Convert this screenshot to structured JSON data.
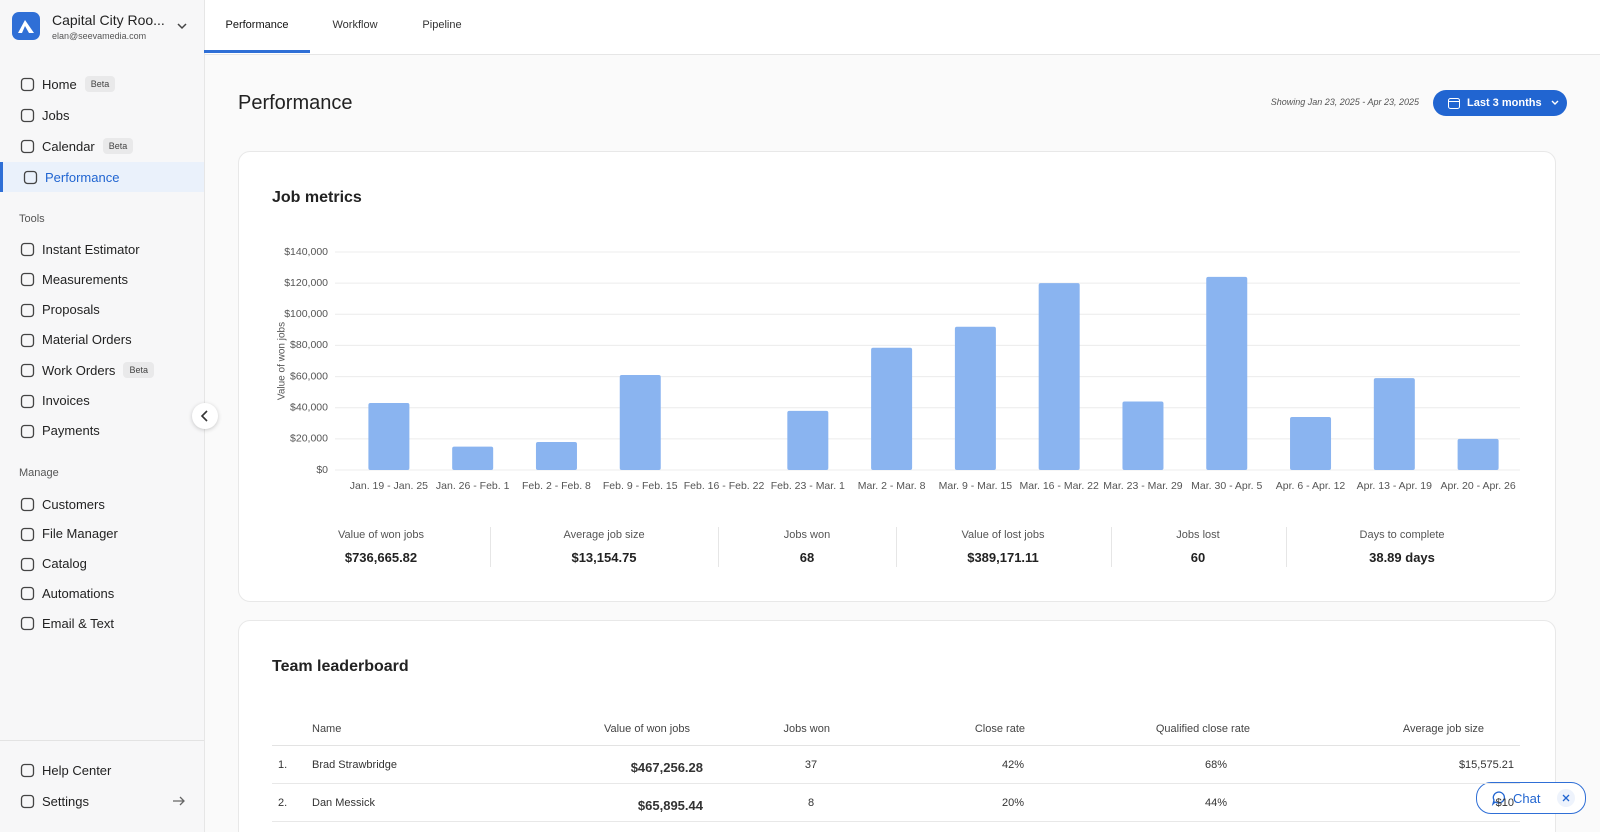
{
  "sidebar": {
    "account": "Capital City Roo...",
    "email": "elan@seevamedia.com",
    "nav": [
      {
        "label": "Home",
        "badge": "Beta"
      },
      {
        "label": "Jobs"
      },
      {
        "label": "Calendar",
        "badge": "Beta"
      },
      {
        "label": "Performance"
      }
    ],
    "tools_heading": "Tools",
    "tools": [
      {
        "label": "Instant Estimator"
      },
      {
        "label": "Measurements"
      },
      {
        "label": "Proposals"
      },
      {
        "label": "Material Orders"
      },
      {
        "label": "Work Orders",
        "badge": "Beta"
      },
      {
        "label": "Invoices"
      },
      {
        "label": "Payments"
      }
    ],
    "manage_heading": "Manage",
    "manage": [
      {
        "label": "Customers"
      },
      {
        "label": "File Manager"
      },
      {
        "label": "Catalog"
      },
      {
        "label": "Automations"
      },
      {
        "label": "Email & Text"
      }
    ],
    "footer": [
      {
        "label": "Help Center"
      },
      {
        "label": "Settings"
      }
    ]
  },
  "tabs": [
    "Performance",
    "Workflow",
    "Pipeline"
  ],
  "header": {
    "title": "Performance",
    "date_range": "Showing Jan 23, 2025 - Apr 23, 2025",
    "period_button": "Last 3 months"
  },
  "chart_data": {
    "type": "bar",
    "title": "Job metrics",
    "y_label": "Value of won jobs",
    "categories": [
      "Jan. 19 - Jan. 25",
      "Jan. 26 - Feb. 1",
      "Feb. 2 - Feb. 8",
      "Feb. 9 - Feb. 15",
      "Feb. 16 - Feb. 22",
      "Feb. 23 - Mar. 1",
      "Mar. 2 - Mar. 8",
      "Mar. 9 - Mar. 15",
      "Mar. 16 - Mar. 22",
      "Mar. 23 - Mar. 29",
      "Mar. 30 - Apr. 5",
      "Apr. 6 - Apr. 12",
      "Apr. 13 - Apr. 19",
      "Apr. 20 - Apr. 26"
    ],
    "values": [
      43000,
      15000,
      18000,
      61000,
      0,
      38000,
      78500,
      92000,
      120000,
      44000,
      124000,
      34000,
      59000,
      20000
    ],
    "color": "#8ab4f0",
    "ylim": [
      0,
      140000
    ],
    "yticks": [
      {
        "value": 0,
        "label": "$0"
      },
      {
        "value": 20000,
        "label": "$20,000"
      },
      {
        "value": 40000,
        "label": "$40,000"
      },
      {
        "value": 60000,
        "label": "$60,000"
      },
      {
        "value": 80000,
        "label": "$80,000"
      },
      {
        "value": 100000,
        "label": "$100,000"
      },
      {
        "value": 120000,
        "label": "$120,000"
      },
      {
        "value": 140000,
        "label": "$140,000"
      }
    ],
    "grid": true
  },
  "metrics": [
    {
      "label": "Value of won jobs",
      "value": "$736,665.82"
    },
    {
      "label": "Average job size",
      "value": "$13,154.75"
    },
    {
      "label": "Jobs won",
      "value": "68"
    },
    {
      "label": "Value of lost jobs",
      "value": "$389,171.11"
    },
    {
      "label": "Jobs lost",
      "value": "60"
    },
    {
      "label": "Days to complete",
      "value": "38.89 days"
    }
  ],
  "leaderboard": {
    "title": "Team leaderboard",
    "columns": [
      "Name",
      "Value of won jobs",
      "Jobs won",
      "Close rate",
      "Qualified close rate",
      "Average job size"
    ],
    "rows": [
      [
        "1.",
        "Brad Strawbridge",
        "$467,256.28",
        "37",
        "42%",
        "68%",
        "$15,575.21"
      ],
      [
        "2.",
        "Dan Messick",
        "$65,895.44",
        "8",
        "20%",
        "44%",
        "$10"
      ]
    ]
  },
  "chat": "Chat"
}
